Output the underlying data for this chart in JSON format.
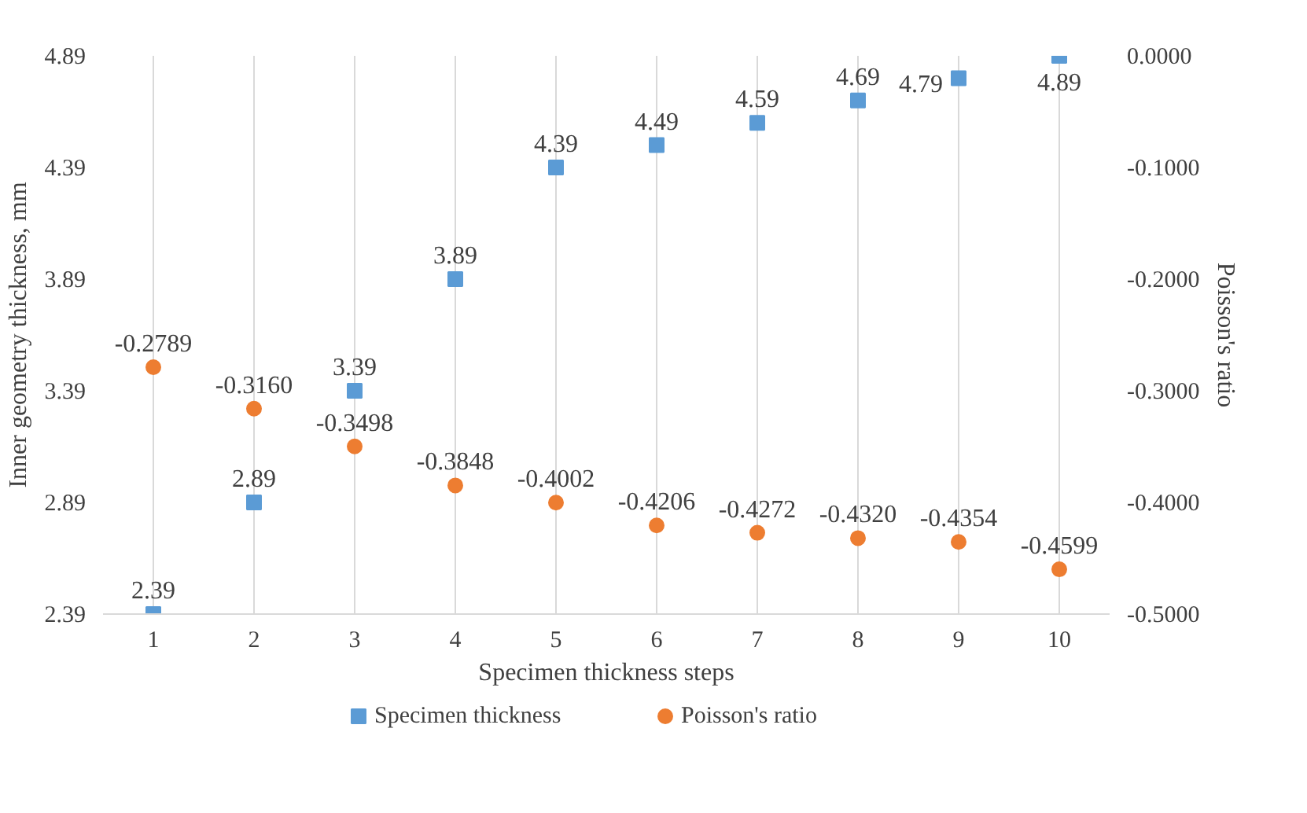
{
  "chart_data": {
    "type": "scatter",
    "xlabel": "Specimen thickness steps",
    "ylabel": "Inner geometry thickness, mm",
    "y2label": "Poisson's ratio",
    "categories": [
      "1",
      "2",
      "3",
      "4",
      "5",
      "6",
      "7",
      "8",
      "9",
      "10"
    ],
    "series": [
      {
        "name": "Specimen thickness",
        "color": "#5b9bd5",
        "marker": "square",
        "values": [
          2.39,
          2.89,
          3.39,
          3.89,
          4.39,
          4.49,
          4.59,
          4.69,
          4.79,
          4.89
        ],
        "value_labels": [
          "2.39",
          "2.89",
          "3.39",
          "3.89",
          "4.39",
          "4.49",
          "4.59",
          "4.69",
          "4.79",
          "4.89"
        ]
      },
      {
        "name": "Poisson's ratio",
        "color": "#ed7d31",
        "marker": "circle",
        "axis": "y2",
        "values": [
          -0.2789,
          -0.316,
          -0.3498,
          -0.3848,
          -0.4002,
          -0.4206,
          -0.4272,
          -0.432,
          -0.4354,
          -0.4599
        ],
        "value_labels": [
          "-0.2789",
          "-0.3160",
          "-0.3498",
          "-0.3848",
          "-0.4002",
          "-0.4206",
          "-0.4272",
          "-0.4320",
          "-0.4354",
          "-0.4599"
        ]
      }
    ],
    "ylim": [
      2.39,
      4.89
    ],
    "yticks": [
      2.39,
      2.89,
      3.39,
      3.89,
      4.39,
      4.89
    ],
    "y2lim": [
      -0.5,
      0
    ],
    "y2ticks": [
      {
        "value": -0.5,
        "label": "-0.5000"
      },
      {
        "value": -0.4,
        "label": "-0.4000"
      },
      {
        "value": -0.3,
        "label": "-0.3000"
      },
      {
        "value": -0.2,
        "label": "-0.2000"
      },
      {
        "value": -0.1,
        "label": "-0.1000"
      },
      {
        "value": 0,
        "label": "0.0000"
      }
    ],
    "grid": "x",
    "legend": "bottom"
  }
}
